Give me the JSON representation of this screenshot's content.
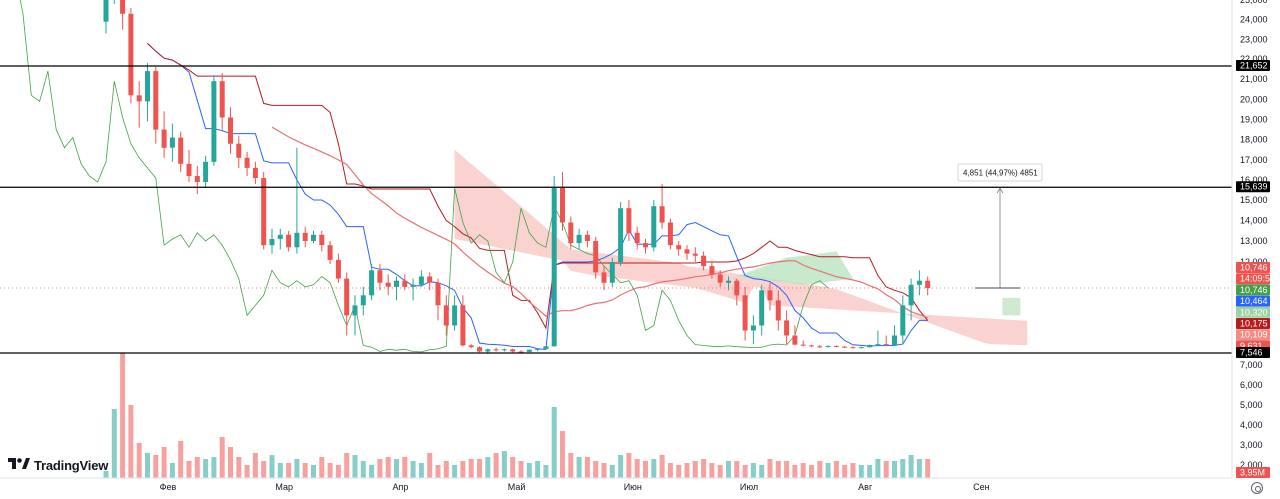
{
  "branding": {
    "name": "TradingView"
  },
  "colors": {
    "up": "#26a69a",
    "down": "#ef5350",
    "kumo_bear": "#f8c4c2",
    "kumo_bull": "#b9e3bf",
    "tenkan": "#2962ff",
    "kijun": "#b71c1c",
    "chikou": "#43a047",
    "ma": "#e57373",
    "hline": "#000000"
  },
  "price_axis": {
    "ticks": [
      "25,000",
      "24,000",
      "23,000",
      "22,000",
      "21,000",
      "20,000",
      "19,000",
      "18,000",
      "17,000",
      "16,000",
      "15,000",
      "14,000",
      "13,000",
      "12,000",
      "7,000",
      "6,000",
      "5,000",
      "4,000",
      "3,000",
      "2,000"
    ]
  },
  "time_axis": {
    "labels": [
      "Фев",
      "Мар",
      "Апр",
      "Май",
      "Июн",
      "Июл",
      "Авг",
      "Сен"
    ]
  },
  "badges": [
    {
      "text": "21,652",
      "color": "#000000"
    },
    {
      "text": "15,639",
      "color": "#000000"
    },
    {
      "text": "10,746",
      "color": "#ef5350"
    },
    {
      "text": "14:09:59",
      "color": "#ef5350"
    },
    {
      "text": "10,746",
      "color": "#43a047"
    },
    {
      "text": "10,464",
      "color": "#2962ff"
    },
    {
      "text": "10,320",
      "color": "#9bd3a3"
    },
    {
      "text": "10,175",
      "color": "#b71c1c"
    },
    {
      "text": "10,109",
      "color": "#f28b82"
    },
    {
      "text": "9,631",
      "color": "#ef5350"
    },
    {
      "text": "7,546",
      "color": "#000000"
    },
    {
      "text": "3,95M",
      "color": "#ef5350"
    }
  ],
  "measure_label": "4,851 (44,97%) 4851",
  "chart_data": {
    "type": "candlestick",
    "horizontal_levels": [
      21.652,
      15.639,
      7.546
    ],
    "current_price": 10.746,
    "indicator_values": {
      "chikou": 10.746,
      "tenkan": 10.464,
      "senkou_a": 10.32,
      "kijun": 10.175,
      "ma": 10.109,
      "low": 9.631
    },
    "volume_last": "3,95M",
    "measure": {
      "from": 10.746,
      "to": 15.597,
      "change": 4.851,
      "change_pct": 44.97
    },
    "candles": [
      [
        23.9,
        25.6,
        23.3,
        25.4
      ],
      [
        25.4,
        27.0,
        24.8,
        26.4
      ],
      [
        26.4,
        26.8,
        23.5,
        24.3
      ],
      [
        24.3,
        24.6,
        19.8,
        20.2
      ],
      [
        20.2,
        20.9,
        18.6,
        19.9
      ],
      [
        19.9,
        21.8,
        18.9,
        21.4
      ],
      [
        21.4,
        21.6,
        17.8,
        18.5
      ],
      [
        18.5,
        19.4,
        17.1,
        17.6
      ],
      [
        17.6,
        18.8,
        16.9,
        18.1
      ],
      [
        18.1,
        18.4,
        16.4,
        16.8
      ],
      [
        16.8,
        17.5,
        15.9,
        16.2
      ],
      [
        16.2,
        16.7,
        15.3,
        15.9
      ],
      [
        15.9,
        17.2,
        15.6,
        16.9
      ],
      [
        16.9,
        21.2,
        16.7,
        20.9
      ],
      [
        20.9,
        21.3,
        18.5,
        19.1
      ],
      [
        19.1,
        19.6,
        17.3,
        17.8
      ],
      [
        17.8,
        18.2,
        16.6,
        17.1
      ],
      [
        17.1,
        17.4,
        16.2,
        16.6
      ],
      [
        16.6,
        16.9,
        15.8,
        16.1
      ],
      [
        16.1,
        16.4,
        12.6,
        12.8
      ],
      [
        12.8,
        13.6,
        12.4,
        13.1
      ],
      [
        13.1,
        13.6,
        12.6,
        13.3
      ],
      [
        13.3,
        13.5,
        12.5,
        12.7
      ],
      [
        12.7,
        17.6,
        12.4,
        13.4
      ],
      [
        13.4,
        13.7,
        12.7,
        13.0
      ],
      [
        13.0,
        13.5,
        12.9,
        13.3
      ],
      [
        13.3,
        13.5,
        12.5,
        12.8
      ],
      [
        12.8,
        13.0,
        11.9,
        12.1
      ],
      [
        12.1,
        12.4,
        11.0,
        11.2
      ],
      [
        11.2,
        11.5,
        9.8,
        10.2
      ],
      [
        10.2,
        10.6,
        9.8,
        10.4
      ],
      [
        10.4,
        10.8,
        10.2,
        10.6
      ],
      [
        10.6,
        11.9,
        10.5,
        11.6
      ],
      [
        11.6,
        11.9,
        10.7,
        11.0
      ],
      [
        11.0,
        11.4,
        10.6,
        10.8
      ],
      [
        10.8,
        11.3,
        10.5,
        11.1
      ],
      [
        11.1,
        11.4,
        10.7,
        10.8
      ],
      [
        10.8,
        11.2,
        10.5,
        10.9
      ],
      [
        10.9,
        11.6,
        10.8,
        11.3
      ],
      [
        11.3,
        11.5,
        10.7,
        11.0
      ],
      [
        11.0,
        11.2,
        10.1,
        10.4
      ],
      [
        10.4,
        10.6,
        9.8,
        10.0
      ],
      [
        10.0,
        10.6,
        9.9,
        10.4
      ],
      [
        10.4,
        10.6,
        9.1,
        9.3
      ],
      [
        9.3,
        9.6,
        8.7,
        8.9
      ],
      [
        8.9,
        9.1,
        7.7,
        7.9
      ],
      [
        7.9,
        8.6,
        7.5,
        8.4
      ],
      [
        8.4,
        8.8,
        7.9,
        8.2
      ],
      [
        8.2,
        8.6,
        7.9,
        8.4
      ],
      [
        8.4,
        8.6,
        7.7,
        7.9
      ],
      [
        7.9,
        8.2,
        7.6,
        7.8
      ],
      [
        7.8,
        8.4,
        7.7,
        8.3
      ],
      [
        8.3,
        8.7,
        8.0,
        8.5
      ],
      [
        8.5,
        9.2,
        8.4,
        9.1
      ],
      [
        9.1,
        16.2,
        9.0,
        15.6
      ],
      [
        15.6,
        16.4,
        13.5,
        13.9
      ],
      [
        13.9,
        14.2,
        12.6,
        12.9
      ],
      [
        12.9,
        13.6,
        12.6,
        13.3
      ],
      [
        13.3,
        13.5,
        12.7,
        13.0
      ],
      [
        13.0,
        13.2,
        11.2,
        11.5
      ],
      [
        11.5,
        11.8,
        10.7,
        11.0
      ],
      [
        11.0,
        12.2,
        10.8,
        12.0
      ],
      [
        12.0,
        14.9,
        11.8,
        14.6
      ],
      [
        14.6,
        15.0,
        13.0,
        13.4
      ],
      [
        13.4,
        13.7,
        12.6,
        12.9
      ],
      [
        12.9,
        13.1,
        12.4,
        12.7
      ],
      [
        12.7,
        15.0,
        12.5,
        14.7
      ],
      [
        14.7,
        15.8,
        13.6,
        13.9
      ],
      [
        13.9,
        14.1,
        12.6,
        12.8
      ],
      [
        12.8,
        13.0,
        12.3,
        12.6
      ],
      [
        12.6,
        12.8,
        12.1,
        12.4
      ],
      [
        12.4,
        12.7,
        12.0,
        12.3
      ],
      [
        12.3,
        12.5,
        11.6,
        11.8
      ],
      [
        11.8,
        12.0,
        11.2,
        11.4
      ],
      [
        11.4,
        11.6,
        10.8,
        11.0
      ],
      [
        11.0,
        11.3,
        10.7,
        11.1
      ],
      [
        11.1,
        11.2,
        10.4,
        10.6
      ],
      [
        10.6,
        10.8,
        9.7,
        9.9
      ],
      [
        9.9,
        10.2,
        9.6,
        10.0
      ],
      [
        10.0,
        10.9,
        9.8,
        10.7
      ],
      [
        10.7,
        11.0,
        10.3,
        10.5
      ],
      [
        10.5,
        10.7,
        9.9,
        10.1
      ],
      [
        10.1,
        10.3,
        9.6,
        9.8
      ],
      [
        9.8,
        10.0,
        9.3,
        9.5
      ],
      [
        9.5,
        9.7,
        9.1,
        9.3
      ],
      [
        9.3,
        9.5,
        8.9,
        9.1
      ],
      [
        9.1,
        9.4,
        8.7,
        9.0
      ],
      [
        9.0,
        9.3,
        8.8,
        9.2
      ],
      [
        9.2,
        9.3,
        8.9,
        9.0
      ],
      [
        9.0,
        9.2,
        8.7,
        8.9
      ],
      [
        8.9,
        9.1,
        8.6,
        8.8
      ],
      [
        8.8,
        9.0,
        8.6,
        8.9
      ],
      [
        8.9,
        9.5,
        8.8,
        9.4
      ],
      [
        9.4,
        9.9,
        9.2,
        9.6
      ],
      [
        9.6,
        9.8,
        9.2,
        9.4
      ],
      [
        9.4,
        10.0,
        9.3,
        9.8
      ],
      [
        9.8,
        10.6,
        9.6,
        10.4
      ],
      [
        10.4,
        11.2,
        10.1,
        10.9
      ],
      [
        10.9,
        11.6,
        10.6,
        11.1
      ],
      [
        11.1,
        11.3,
        10.6,
        10.75
      ]
    ],
    "volumes": [
      1.7,
      4.8,
      7.6,
      5.0,
      3.1,
      2.6,
      2.5,
      2.9,
      2.1,
      3.2,
      2.2,
      2.4,
      2.3,
      2.4,
      3.4,
      2.9,
      2.4,
      2.0,
      2.6,
      2.2,
      2.5,
      2.1,
      2.1,
      2.3,
      2.1,
      2.0,
      2.4,
      2.1,
      2.0,
      2.6,
      2.5,
      2.2,
      2.0,
      2.3,
      2.4,
      2.3,
      2.4,
      2.2,
      2.1,
      2.6,
      2.0,
      2.2,
      2.0,
      2.2,
      2.3,
      2.3,
      2.4,
      2.6,
      2.7,
      2.4,
      2.2,
      2.1,
      2.2,
      2.0,
      4.9,
      3.7,
      2.6,
      2.4,
      2.4,
      2.2,
      2.1,
      2.0,
      2.5,
      2.6,
      2.3,
      2.2,
      2.3,
      2.5,
      2.1,
      2.0,
      2.1,
      2.2,
      2.3,
      2.1,
      2.0,
      2.2,
      2.2,
      2.0,
      2.1,
      2.0,
      2.3,
      2.2,
      2.2,
      2.0,
      2.1,
      2.0,
      2.2,
      2.1,
      2.2,
      2.0,
      2.1,
      2.0,
      2.0,
      2.3,
      2.2,
      2.2,
      2.3,
      2.5,
      2.3,
      2.3
    ]
  }
}
